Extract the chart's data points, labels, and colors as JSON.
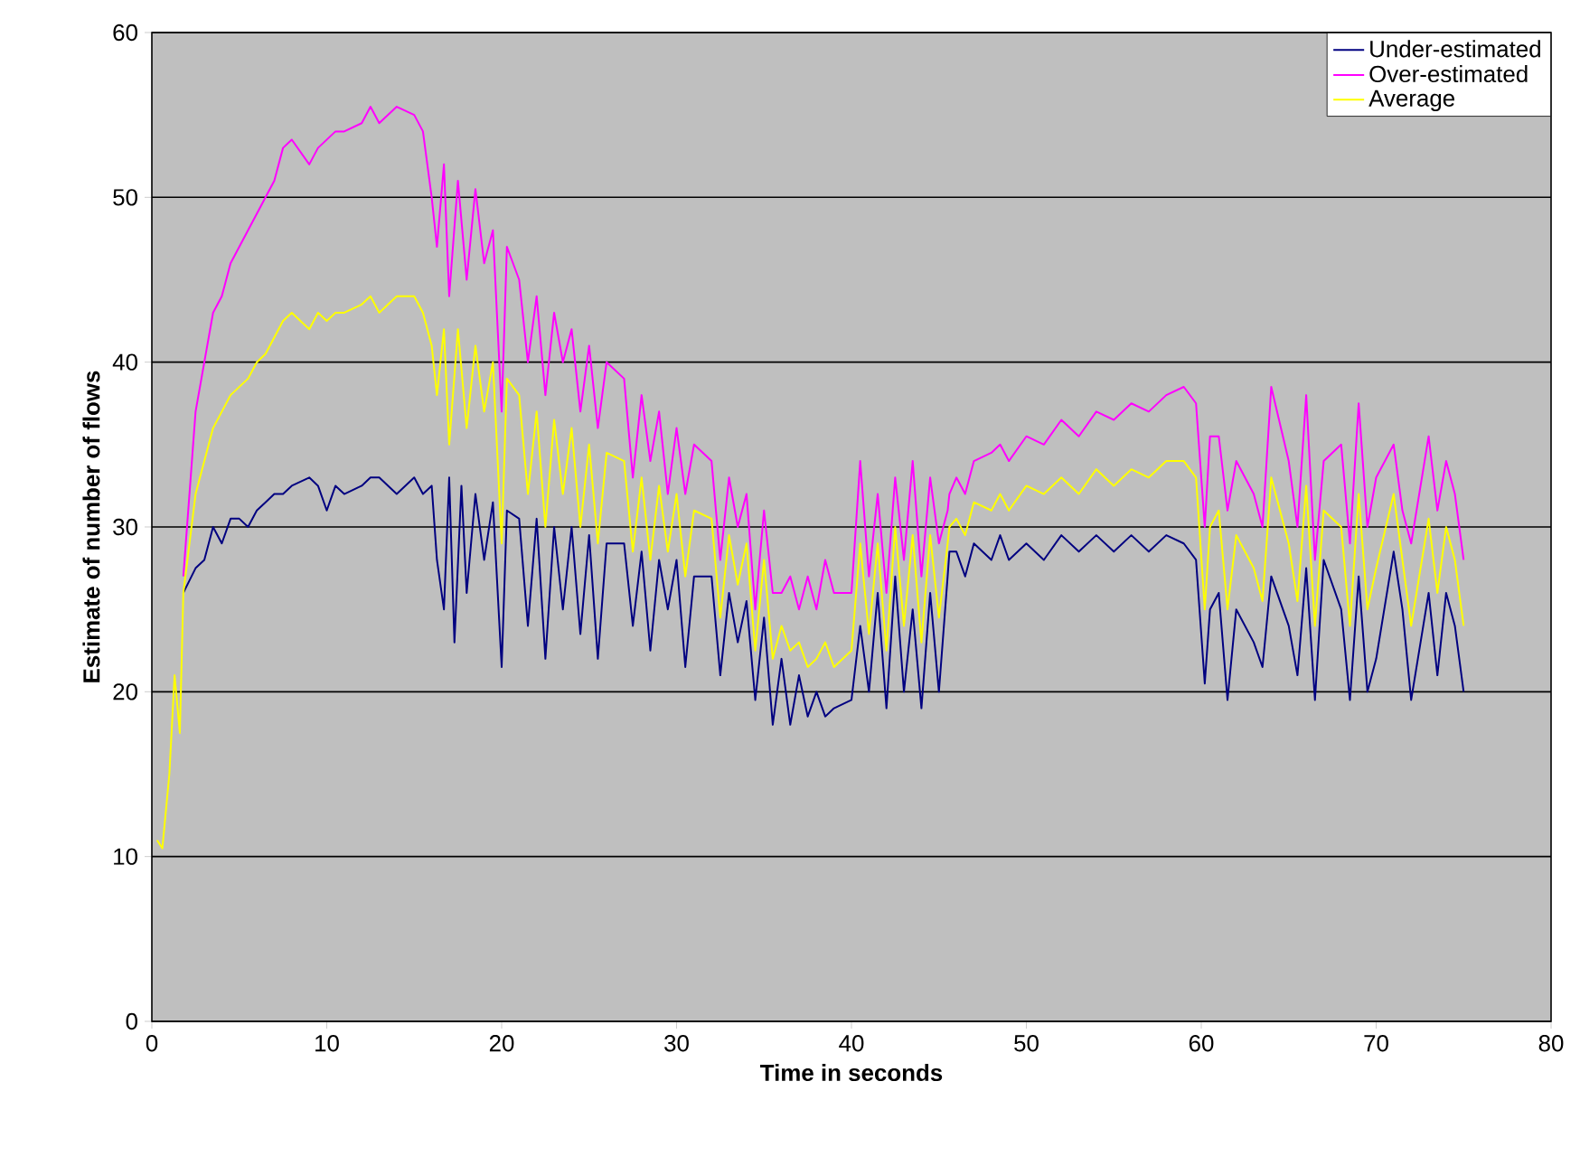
{
  "chart_data": {
    "type": "line",
    "xlabel": "Time in seconds",
    "ylabel": "Estimate of number of flows",
    "xlim": [
      0,
      80
    ],
    "xticks": [
      0,
      10,
      20,
      30,
      40,
      50,
      60,
      70,
      80
    ],
    "ylim": [
      0,
      60
    ],
    "yticks": [
      0,
      10,
      20,
      30,
      40,
      50,
      60
    ],
    "grid": "y",
    "legend": "top right",
    "marker": "none",
    "line_style": "solid",
    "series": [
      {
        "name": "Under-estimated",
        "color": "#000080",
        "x": [
          1.8,
          2.5,
          3,
          3.5,
          4,
          4.5,
          5,
          5.5,
          6,
          6.5,
          7,
          7.5,
          8,
          9,
          9.5,
          10,
          10.5,
          11,
          12,
          12.5,
          13,
          14,
          15,
          15.5,
          16,
          16.3,
          16.7,
          17,
          17.3,
          17.7,
          18,
          18.5,
          19,
          19.5,
          20,
          20.3,
          21,
          21.5,
          22,
          22.5,
          23,
          23.5,
          24,
          24.5,
          25,
          25.5,
          26,
          27,
          27.5,
          28,
          28.5,
          29,
          29.5,
          30,
          30.5,
          31,
          32,
          32.5,
          33,
          33.5,
          34,
          34.5,
          35,
          35.5,
          36,
          36.5,
          37,
          37.5,
          38,
          38.5,
          39,
          40,
          40.5,
          41,
          41.5,
          42,
          42.5,
          43,
          43.5,
          44,
          44.5,
          45,
          45.5,
          45.6,
          46,
          46.5,
          47,
          48,
          48.5,
          49,
          50,
          51,
          52,
          53,
          54,
          55,
          56,
          57,
          58,
          59,
          59.7,
          60.2,
          60.5,
          61,
          61.5,
          62,
          63,
          63.5,
          64,
          65,
          65.5,
          66,
          66.5,
          67,
          68,
          68.5,
          69,
          69.5,
          70,
          71,
          71.5,
          72,
          73,
          73.5,
          74,
          74.5,
          75
        ],
        "values": [
          26,
          27.5,
          28,
          30,
          29,
          30.5,
          30.5,
          30,
          31,
          31.5,
          32,
          32,
          32.5,
          33,
          32.5,
          31,
          32.5,
          32,
          32.5,
          33,
          33,
          32,
          33,
          32,
          32.5,
          28,
          25,
          33,
          23,
          32.5,
          26,
          32,
          28,
          31.5,
          21.5,
          31,
          30.5,
          24,
          30.5,
          22,
          30,
          25,
          30,
          23.5,
          29.5,
          22,
          29,
          29,
          24,
          28.5,
          22.5,
          28,
          25,
          28,
          21.5,
          27,
          27,
          21,
          26,
          23,
          25.5,
          19.5,
          24.5,
          18,
          22,
          18,
          21,
          18.5,
          20,
          18.5,
          19,
          19.5,
          24,
          20,
          26,
          19,
          27,
          20,
          25,
          19,
          26,
          20,
          27,
          28.5,
          28.5,
          27,
          29,
          28,
          29.5,
          28,
          29,
          28,
          29.5,
          28.5,
          29.5,
          28.5,
          29.5,
          28.5,
          29.5,
          29,
          28,
          20.5,
          25,
          26,
          19.5,
          25,
          23,
          21.5,
          27,
          24,
          21,
          27.5,
          19.5,
          28,
          25,
          19.5,
          27,
          20,
          22,
          28.5,
          25,
          19.5,
          26,
          21,
          26,
          24,
          20
        ]
      },
      {
        "name": "Over-estimated",
        "color": "#ff00ff",
        "x": [
          1.8,
          2.5,
          3,
          3.5,
          4,
          4.5,
          5,
          5.5,
          6,
          6.5,
          7,
          7.5,
          8,
          9,
          9.5,
          10,
          10.5,
          11,
          12,
          12.5,
          13,
          14,
          15,
          15.5,
          16,
          16.3,
          16.7,
          17,
          17.5,
          18,
          18.5,
          19,
          19.5,
          20,
          20.3,
          21,
          21.5,
          22,
          22.5,
          23,
          23.5,
          24,
          24.5,
          25,
          25.5,
          26,
          27,
          27.5,
          28,
          28.5,
          29,
          29.5,
          30,
          30.5,
          31,
          32,
          32.5,
          33,
          33.5,
          34,
          34.5,
          35,
          35.5,
          36,
          36.5,
          37,
          37.5,
          38,
          38.5,
          39,
          40,
          40.5,
          41,
          41.5,
          42,
          42.5,
          43,
          43.5,
          44,
          44.5,
          45,
          45.5,
          45.6,
          46,
          46.5,
          47,
          48,
          48.5,
          49,
          50,
          51,
          52,
          53,
          54,
          55,
          56,
          57,
          58,
          59,
          59.7,
          60.2,
          60.5,
          61,
          61.5,
          62,
          63,
          63.5,
          64,
          65,
          65.5,
          66,
          66.5,
          67,
          68,
          68.5,
          69,
          69.5,
          70,
          71,
          71.5,
          72,
          73,
          73.5,
          74,
          74.5,
          75
        ],
        "values": [
          27,
          37,
          40,
          43,
          44,
          46,
          47,
          48,
          49,
          50,
          51,
          53,
          53.5,
          52,
          53,
          53.5,
          54,
          54,
          54.5,
          55.5,
          54.5,
          55.5,
          55,
          54,
          50,
          47,
          52,
          44,
          51,
          45,
          50.5,
          46,
          48,
          37,
          47,
          45,
          40,
          44,
          38,
          43,
          40,
          42,
          37,
          41,
          36,
          40,
          39,
          33,
          38,
          34,
          37,
          32,
          36,
          32,
          35,
          34,
          28,
          33,
          30,
          32,
          25,
          31,
          26,
          26,
          27,
          25,
          27,
          25,
          28,
          26,
          26,
          34,
          27,
          32,
          26,
          33,
          28,
          34,
          27,
          33,
          29,
          31,
          32,
          33,
          32,
          34,
          34.5,
          35,
          34,
          35.5,
          35,
          36.5,
          35.5,
          37,
          36.5,
          37.5,
          37,
          38,
          38.5,
          37.5,
          30,
          35.5,
          35.5,
          31,
          34,
          32,
          30,
          38.5,
          34,
          30,
          38,
          28,
          34,
          35,
          29,
          37.5,
          30,
          33,
          35,
          31,
          29,
          35.5,
          31,
          34,
          32,
          28
        ]
      },
      {
        "name": "Average",
        "color": "#ffff00",
        "x": [
          0.3,
          0.6,
          1,
          1.3,
          1.6,
          1.8,
          2.5,
          3,
          3.5,
          4,
          4.5,
          5,
          5.5,
          6,
          6.5,
          7,
          7.5,
          8,
          9,
          9.5,
          10,
          10.5,
          11,
          12,
          12.5,
          13,
          14,
          15,
          15.5,
          16,
          16.3,
          16.7,
          17,
          17.5,
          18,
          18.5,
          19,
          19.5,
          20,
          20.3,
          21,
          21.5,
          22,
          22.5,
          23,
          23.5,
          24,
          24.5,
          25,
          25.5,
          26,
          27,
          27.5,
          28,
          28.5,
          29,
          29.5,
          30,
          30.5,
          31,
          32,
          32.5,
          33,
          33.5,
          34,
          34.5,
          35,
          35.5,
          36,
          36.5,
          37,
          37.5,
          38,
          38.5,
          39,
          40,
          40.5,
          41,
          41.5,
          42,
          42.5,
          43,
          43.5,
          44,
          44.5,
          45,
          45.5,
          45.6,
          46,
          46.5,
          47,
          48,
          48.5,
          49,
          50,
          51,
          52,
          53,
          54,
          55,
          56,
          57,
          58,
          59,
          59.7,
          60.2,
          60.5,
          61,
          61.5,
          62,
          63,
          63.5,
          64,
          65,
          65.5,
          66,
          66.5,
          67,
          68,
          68.5,
          69,
          69.5,
          70,
          71,
          71.5,
          72,
          73,
          73.5,
          74,
          74.5,
          75
        ],
        "values": [
          11,
          10.5,
          15,
          21,
          17.5,
          26,
          32,
          34,
          36,
          37,
          38,
          38.5,
          39,
          40,
          40.5,
          41.5,
          42.5,
          43,
          42,
          43,
          42.5,
          43,
          43,
          43.5,
          44,
          43,
          44,
          44,
          43,
          41,
          38,
          42,
          35,
          42,
          36,
          41,
          37,
          40,
          29,
          39,
          38,
          32,
          37,
          30,
          36.5,
          32,
          36,
          30,
          35,
          29,
          34.5,
          34,
          28.5,
          33,
          28,
          32.5,
          28.5,
          32,
          27,
          31,
          30.5,
          24.5,
          29.5,
          26.5,
          29,
          22.5,
          28,
          22,
          24,
          22.5,
          23,
          21.5,
          22,
          23,
          21.5,
          22.5,
          29,
          23.5,
          29,
          22.5,
          30,
          24,
          29.5,
          23,
          29.5,
          24.5,
          29,
          30,
          30.5,
          29.5,
          31.5,
          31,
          32,
          31,
          32.5,
          32,
          33,
          32,
          33.5,
          32.5,
          33.5,
          33,
          34,
          34,
          33,
          25,
          30,
          31,
          25,
          29.5,
          27.5,
          25.5,
          33,
          29,
          25.5,
          32.5,
          24,
          31,
          30,
          24,
          32,
          25,
          27.5,
          32,
          28,
          24,
          30.5,
          26,
          30,
          28,
          24
        ]
      }
    ]
  }
}
